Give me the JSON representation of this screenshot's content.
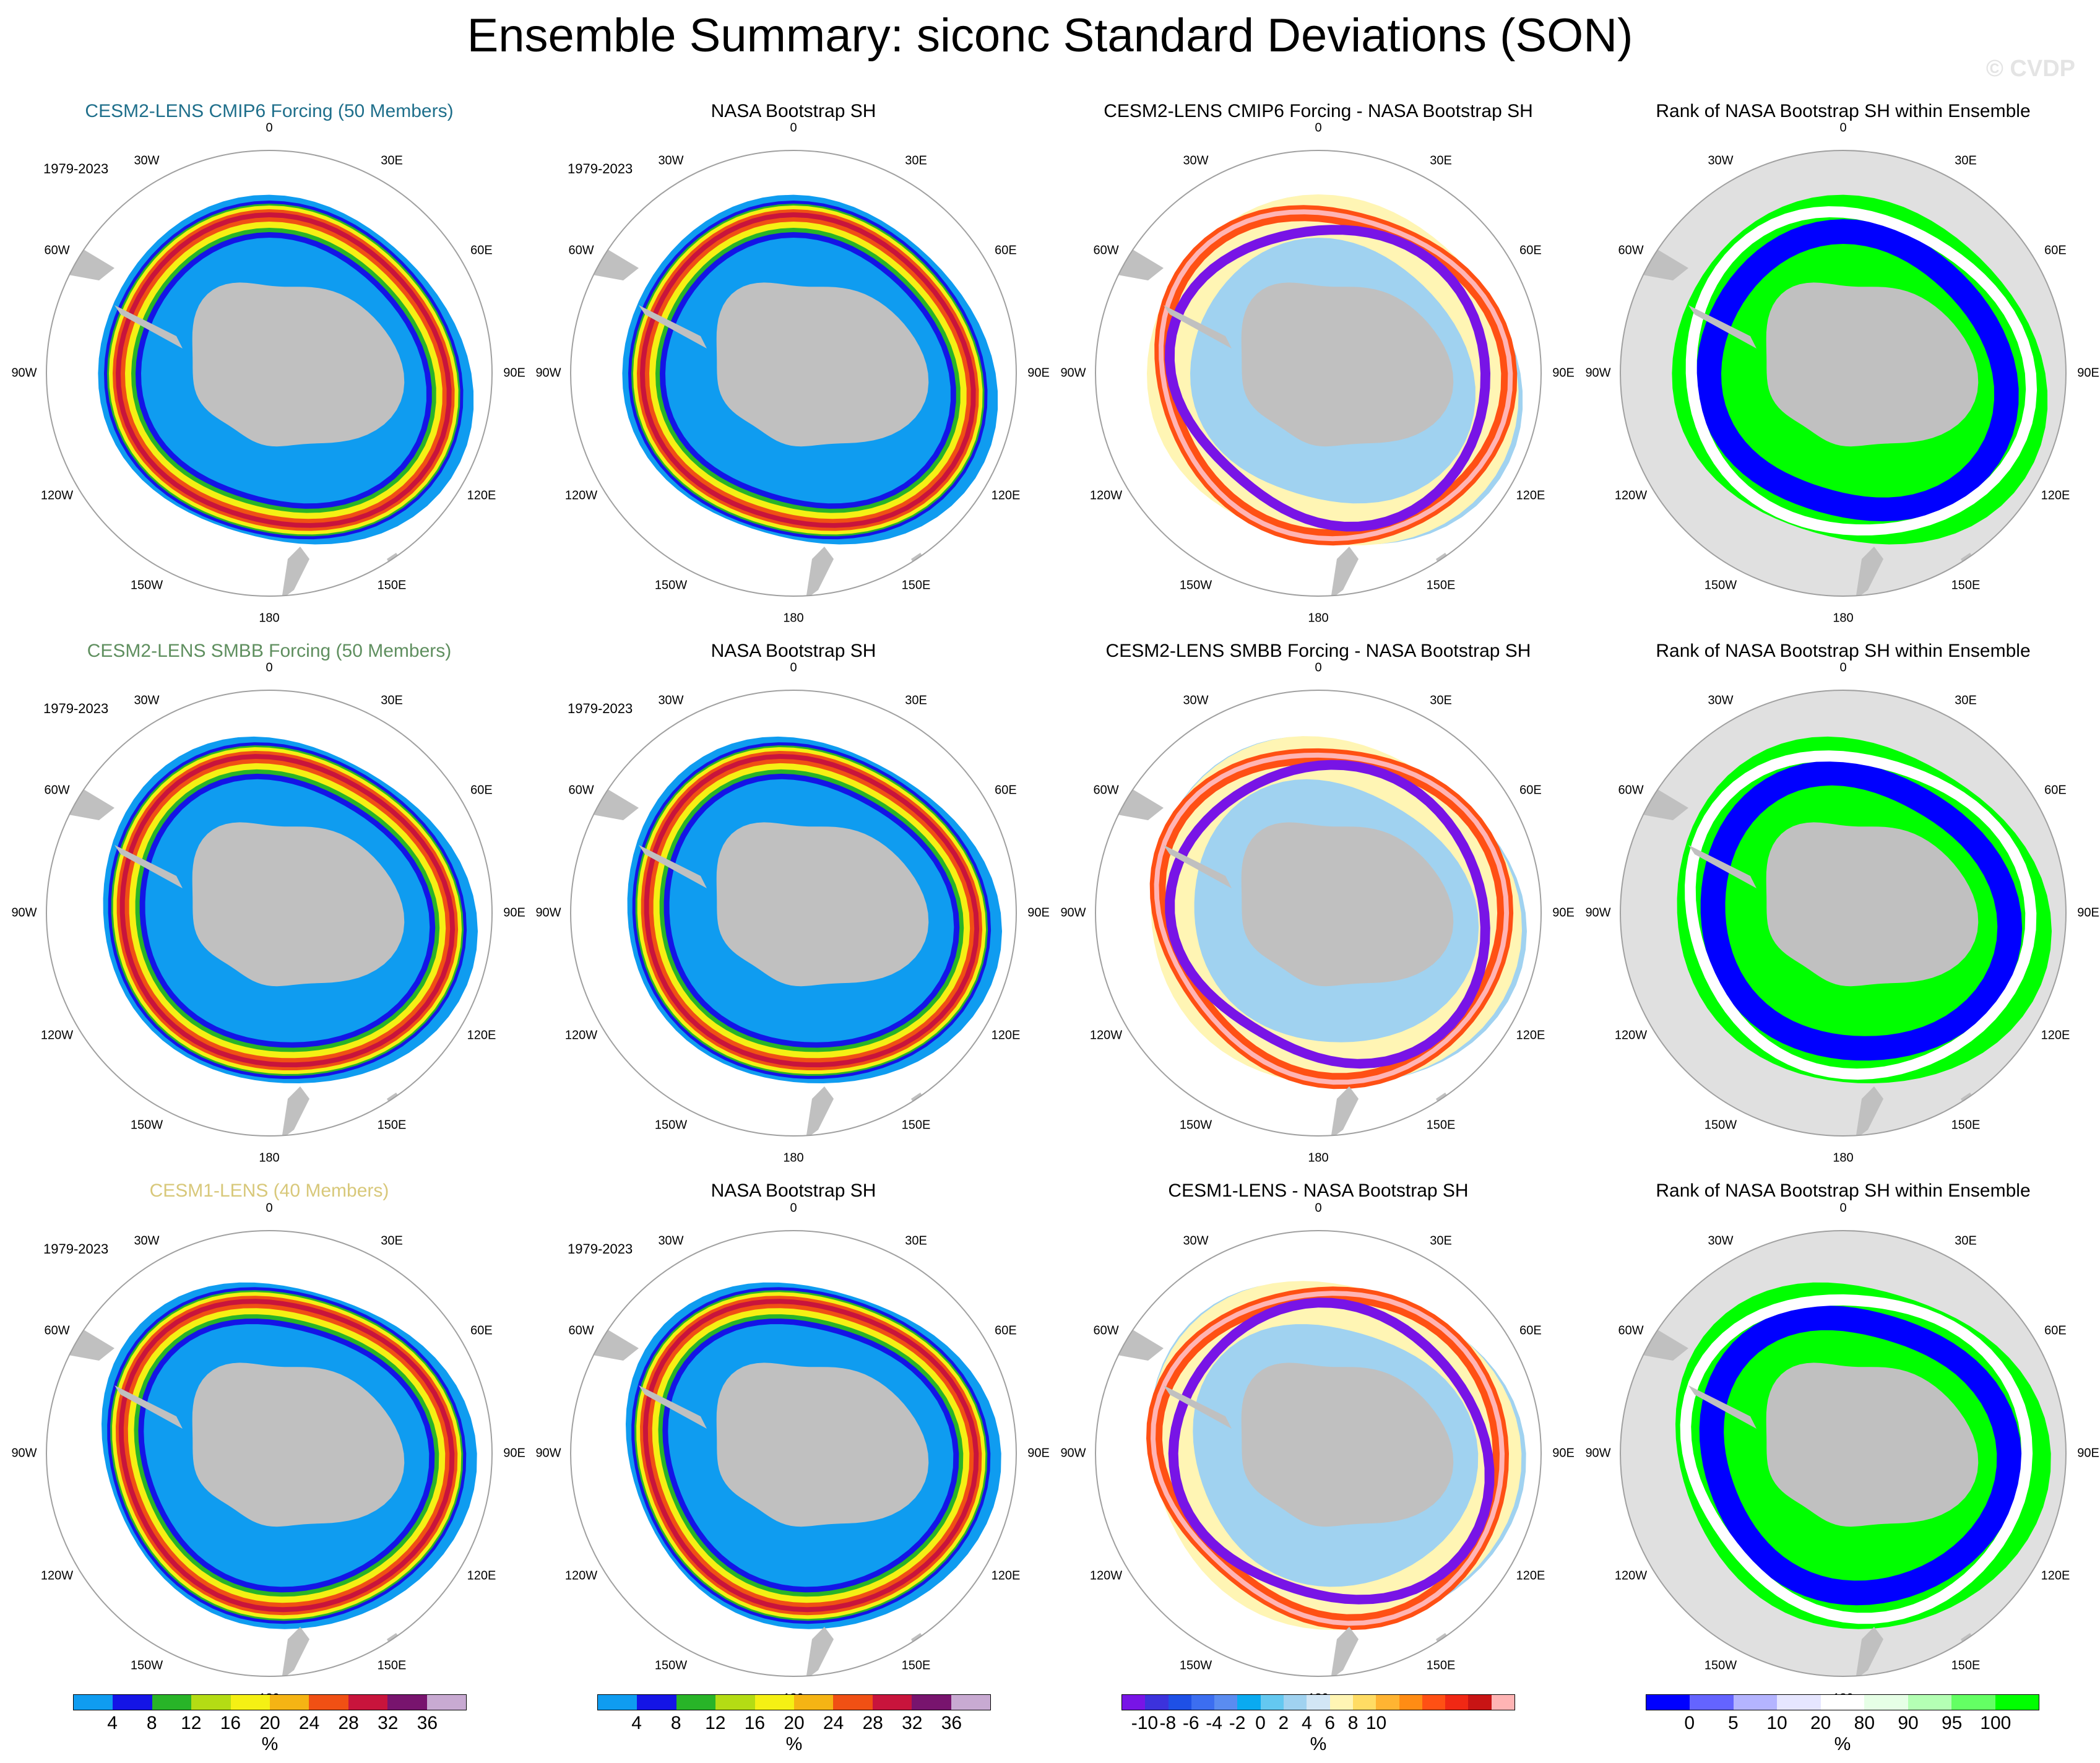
{
  "header": {
    "title": "Ensemble Summary: siconc Standard Deviations (SON)",
    "watermark": "© CVDP"
  },
  "period": "1979-2023",
  "lon_labels": [
    "0",
    "30E",
    "60E",
    "90E",
    "120E",
    "150E",
    "180",
    "150W",
    "120W",
    "90W",
    "60W",
    "30W"
  ],
  "rows": [
    {
      "ensemble": {
        "title": "CESM2-LENS CMIP6 Forcing (50 Members)",
        "color": "#1f6f8b"
      },
      "obs_title": "NASA Bootstrap SH",
      "diff_title": "CESM2-LENS CMIP6 Forcing - NASA Bootstrap SH",
      "rank_title": "Rank of NASA Bootstrap SH within Ensemble"
    },
    {
      "ensemble": {
        "title": "CESM2-LENS SMBB Forcing (50 Members)",
        "color": "#5f8f5f"
      },
      "obs_title": "NASA Bootstrap SH",
      "diff_title": "CESM2-LENS SMBB Forcing - NASA Bootstrap SH",
      "rank_title": "Rank of NASA Bootstrap SH within Ensemble"
    },
    {
      "ensemble": {
        "title": "CESM1-LENS (40 Members)",
        "color": "#d8c87a"
      },
      "obs_title": "NASA Bootstrap SH",
      "diff_title": "CESM1-LENS - NASA Bootstrap SH",
      "rank_title": "Rank of NASA Bootstrap SH within Ensemble"
    }
  ],
  "legends": {
    "stddev": {
      "colors": [
        "#0f9cf0",
        "#1414e6",
        "#28b428",
        "#b4dc14",
        "#f5f014",
        "#f5b414",
        "#f05014",
        "#c8143c",
        "#78146e",
        "#c8aad2"
      ],
      "ticks": [
        "4",
        "8",
        "12",
        "16",
        "20",
        "24",
        "28",
        "32",
        "36"
      ],
      "unit": "%"
    },
    "diff": {
      "colors": [
        "#7814e6",
        "#3c32dc",
        "#1e50e6",
        "#3c6ef0",
        "#5a8cf0",
        "#0aaaf0",
        "#64c8f0",
        "#a0d2f0",
        "#d2e6f5",
        "#fff5b4",
        "#ffdc64",
        "#ffb432",
        "#ff8c14",
        "#ff5014",
        "#f02814",
        "#c81414",
        "#ffb4b4"
      ],
      "ticks": [
        "-10",
        "-8",
        "-6",
        "-4",
        "-2",
        "0",
        "2",
        "4",
        "6",
        "8",
        "10"
      ],
      "unit": "%"
    },
    "rank": {
      "colors": [
        "#0000ff",
        "#6464ff",
        "#b4b4ff",
        "#e6e6ff",
        "#ffffff",
        "#e6ffe6",
        "#b4ffb4",
        "#64ff64",
        "#00ff00"
      ],
      "ticks": [
        "0",
        "5",
        "10",
        "20",
        "80",
        "90",
        "95",
        "100"
      ],
      "unit": "%"
    }
  },
  "colors": {
    "land": "#c0c0c0",
    "rank_background": "#e0e0e0",
    "outline": "#a0a0a0"
  }
}
